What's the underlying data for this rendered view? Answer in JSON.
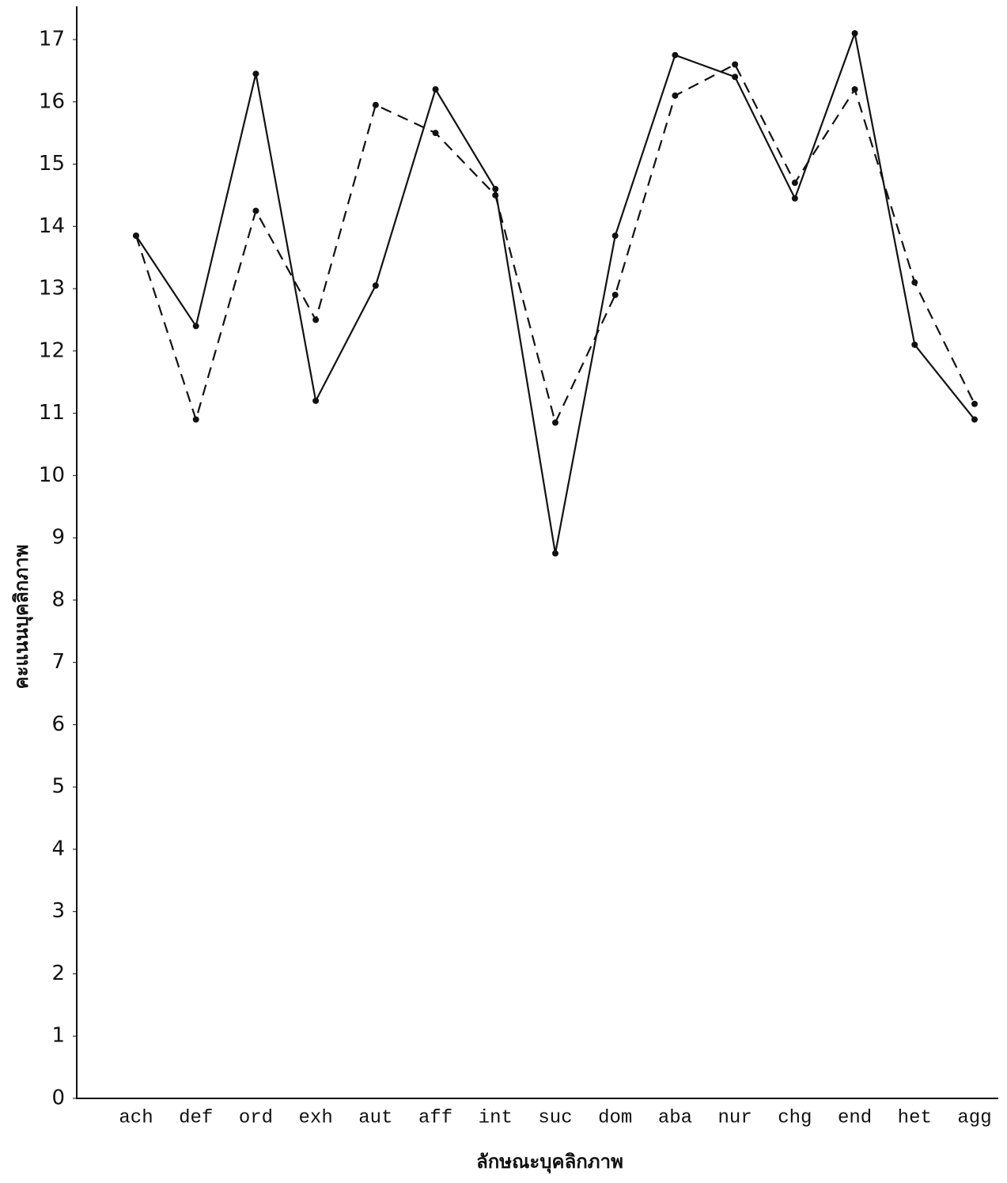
{
  "chart_data": {
    "type": "line",
    "xlabel": "ลักษณะบุคลิกภาพ",
    "ylabel": "คะแนนบุคลิกภาพ",
    "categories": [
      "ach",
      "def",
      "ord",
      "exh",
      "aut",
      "aff",
      "int",
      "suc",
      "dom",
      "aba",
      "nur",
      "chg",
      "end",
      "het",
      "agg"
    ],
    "series": [
      {
        "color": "#111111",
        "style": "solid",
        "values": [
          13.85,
          12.4,
          16.45,
          11.2,
          13.05,
          16.2,
          14.6,
          8.75,
          13.85,
          16.75,
          16.4,
          14.45,
          17.1,
          12.1,
          10.9
        ]
      },
      {
        "color": "#111111",
        "style": "dashed",
        "values": [
          13.85,
          10.9,
          14.25,
          12.5,
          15.95,
          15.5,
          14.5,
          10.85,
          12.9,
          16.1,
          16.6,
          14.7,
          16.2,
          13.1,
          11.15
        ]
      }
    ],
    "ylim": [
      0,
      17
    ],
    "yticks": [
      0,
      1,
      2,
      3,
      4,
      5,
      6,
      7,
      8,
      9,
      10,
      11,
      12,
      13,
      14,
      15,
      16,
      17
    ]
  }
}
